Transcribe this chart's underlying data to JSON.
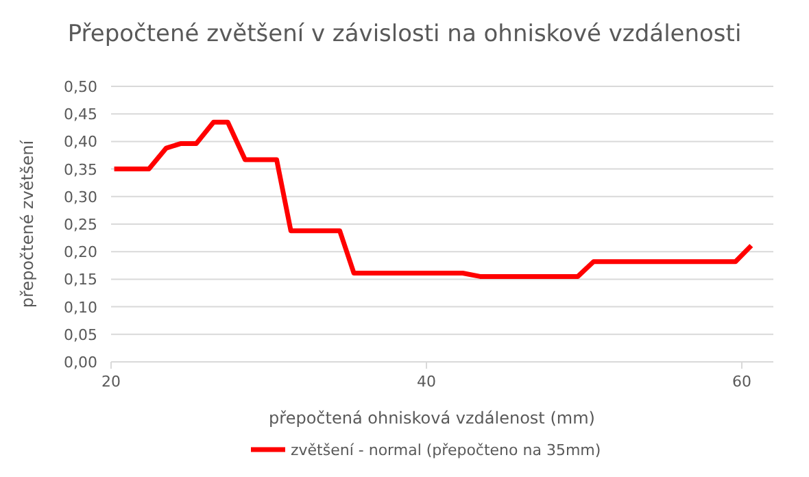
{
  "chart_data": {
    "type": "line",
    "title": "Přepočtené zvětšení v závislosti na ohniskové vzdálenosti",
    "xlabel": "přepočtená ohnisková vzdálenost (mm)",
    "ylabel": "přepočtené  zvětšení",
    "x": [
      20.2,
      22.4,
      23.5,
      24.4,
      25.4,
      26.5,
      27.4,
      28.5,
      30.5,
      31.4,
      34.5,
      35.4,
      42.3,
      43.4,
      49.6,
      50.6,
      59.6,
      60.6
    ],
    "series": [
      {
        "name": "zvětšení - normal (přepočteno na 35mm)",
        "color": "#ff0000",
        "values": [
          0.35,
          0.35,
          0.388,
          0.396,
          0.396,
          0.435,
          0.435,
          0.367,
          0.367,
          0.238,
          0.238,
          0.161,
          0.161,
          0.155,
          0.155,
          0.182,
          0.182,
          0.211
        ]
      }
    ],
    "xlim": [
      20,
      62
    ],
    "xticks": [
      20,
      40,
      60
    ],
    "ylim": [
      0,
      0.5
    ],
    "yticks": [
      {
        "value": 0,
        "label": "0,00"
      },
      {
        "value": 0.05,
        "label": "0,05"
      },
      {
        "value": 0.1,
        "label": "0,10"
      },
      {
        "value": 0.15,
        "label": "0,15"
      },
      {
        "value": 0.2,
        "label": "0,20"
      },
      {
        "value": 0.25,
        "label": "0,25"
      },
      {
        "value": 0.3,
        "label": "0,30"
      },
      {
        "value": 0.35,
        "label": "0,35"
      },
      {
        "value": 0.4,
        "label": "0,40"
      },
      {
        "value": 0.45,
        "label": "0,45"
      },
      {
        "value": 0.5,
        "label": "0,50"
      }
    ],
    "grid": "y",
    "legend": "bottom",
    "marker": "none",
    "line_style": "solid"
  }
}
